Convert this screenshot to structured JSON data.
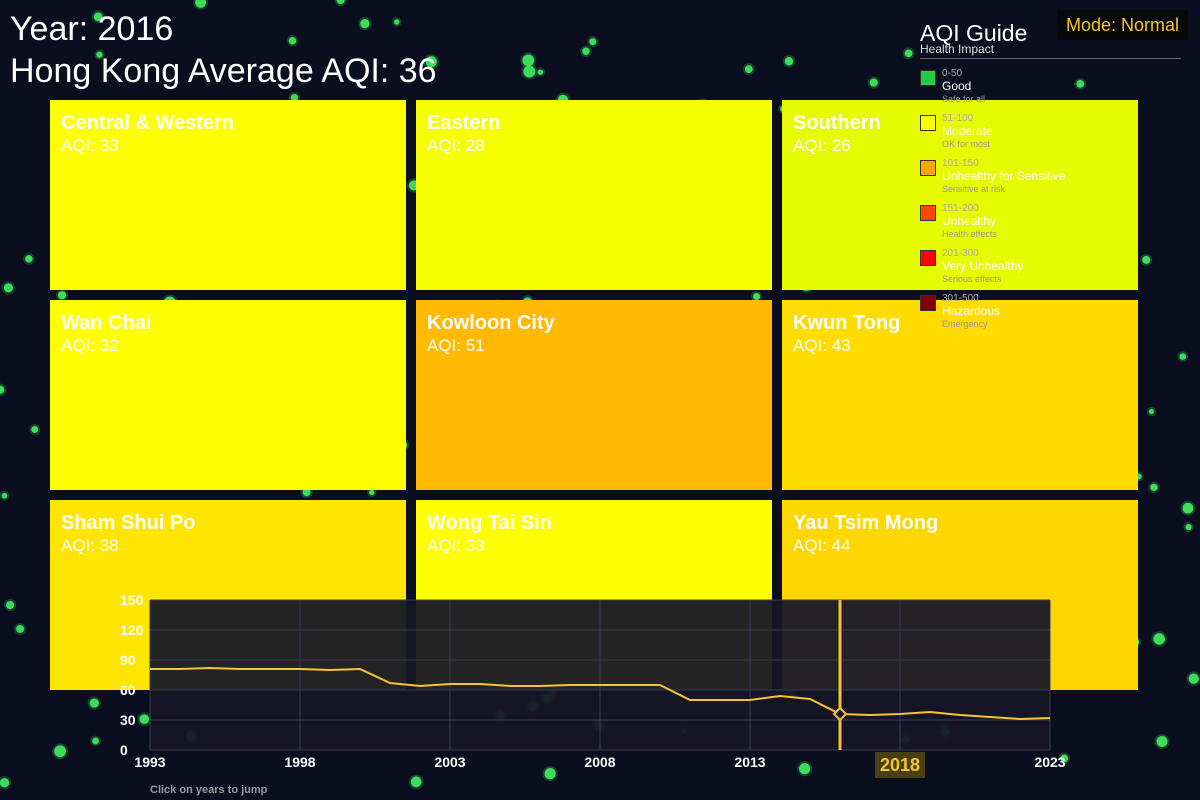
{
  "header": {
    "year_text": "Year: 2016",
    "average_text": "Hong Kong Average AQI: 36"
  },
  "mode_badge": "Mode: Normal",
  "districts": [
    {
      "name": "Central & Western",
      "aqi": "AQI: 33",
      "color": "#ffff00"
    },
    {
      "name": "Eastern",
      "aqi": "AQI: 28",
      "color": "#f5ff00"
    },
    {
      "name": "Southern",
      "aqi": "AQI: 26",
      "color": "#e6fa00"
    },
    {
      "name": "Wan Chai",
      "aqi": "AQI: 32",
      "color": "#ffff00"
    },
    {
      "name": "Kowloon City",
      "aqi": "AQI: 51",
      "color": "#ffba00"
    },
    {
      "name": "Kwun Tong",
      "aqi": "AQI: 43",
      "color": "#ffdc00"
    },
    {
      "name": "Sham Shui Po",
      "aqi": "AQI: 38",
      "color": "#ffe600"
    },
    {
      "name": "Wong Tai Sin",
      "aqi": "AQI: 33",
      "color": "#ffff00"
    },
    {
      "name": "Yau Tsim Mong",
      "aqi": "AQI: 44",
      "color": "#ffd700"
    }
  ],
  "legend": {
    "title": "AQI Guide",
    "subtitle": "Health Impact",
    "items": [
      {
        "range": "0-50",
        "label": "Good",
        "desc": "Safe for all",
        "color": "#22cc44"
      },
      {
        "range": "51-100",
        "label": "Moderate",
        "desc": "OK for most",
        "color": "#ffff00"
      },
      {
        "range": "101-150",
        "label": "Unhealthy for Sensitive",
        "desc": "Sensitive at risk",
        "color": "#ffa500"
      },
      {
        "range": "151-200",
        "label": "Unhealthy",
        "desc": "Health effects",
        "color": "#ff4500"
      },
      {
        "range": "201-300",
        "label": "Very Unhealthy",
        "desc": "Serious effects",
        "color": "#ff0000"
      },
      {
        "range": "301-500",
        "label": "Hazardous",
        "desc": "Emergency",
        "color": "#800000"
      }
    ]
  },
  "timeline": {
    "hint": "Click on years to jump",
    "selected_year": 2016,
    "highlight_label": "2018"
  },
  "chart_data": {
    "type": "line",
    "x": [
      1993,
      1994,
      1995,
      1996,
      1997,
      1998,
      1999,
      2000,
      2001,
      2002,
      2003,
      2004,
      2005,
      2006,
      2007,
      2008,
      2009,
      2010,
      2011,
      2012,
      2013,
      2014,
      2015,
      2016,
      2017,
      2018,
      2019,
      2020,
      2021,
      2022,
      2023
    ],
    "series": [
      {
        "values": [
          81,
          81,
          82,
          81,
          81,
          81,
          80,
          81,
          67,
          64,
          66,
          66,
          64,
          64,
          65,
          65,
          65,
          65,
          50,
          50,
          50,
          54,
          51,
          36,
          35,
          36,
          38,
          35,
          33,
          31,
          32
        ]
      }
    ],
    "xticks": [
      "1993",
      "1998",
      "2003",
      "2008",
      "2013",
      "2018",
      "2023"
    ],
    "yticks": [
      "0",
      "30",
      "60",
      "90",
      "120",
      "150"
    ],
    "xlim": [
      1993,
      2023
    ],
    "ylim": [
      0,
      150
    ],
    "grid": true
  }
}
